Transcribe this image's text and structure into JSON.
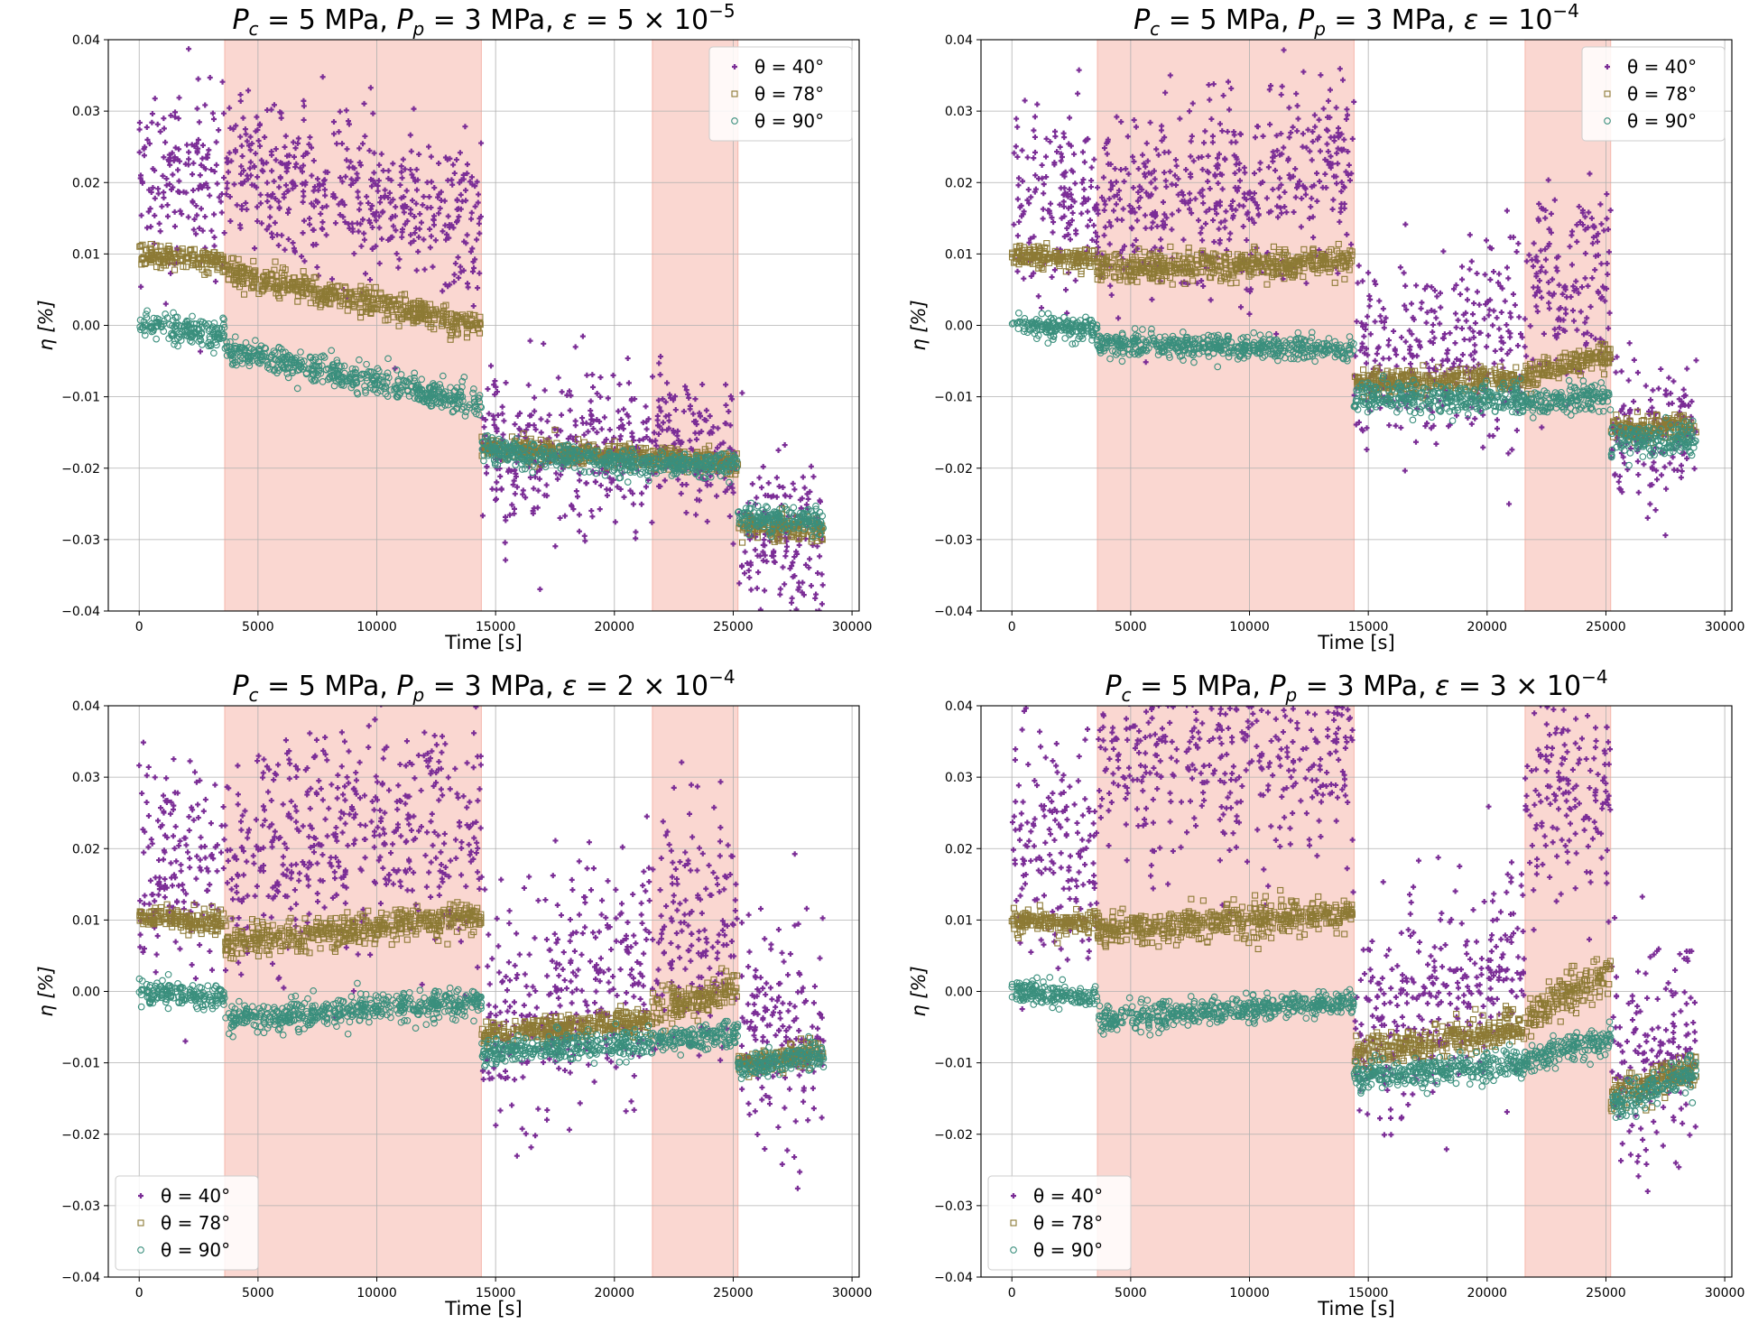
{
  "colors": {
    "theta_40": "#7b2d96",
    "theta_78": "#8d7a35",
    "theta_90": "#3a8f7d",
    "shade": "#f5b7ac"
  },
  "chart_data": [
    {
      "type": "scatter",
      "title": "P_c = 5 MPa, P_p = 3 MPa, ε = 5 × 10^-5",
      "title_parts": {
        "pc": "5 MPa",
        "pp": "3 MPa",
        "eps_mantissa": "5",
        "eps_exp": "−5"
      },
      "xlabel": "Time [s]",
      "ylabel": "η [%]",
      "xlim": [
        -1300,
        30300
      ],
      "ylim": [
        -0.04,
        0.04
      ],
      "xticks": [
        "0",
        "5000",
        "10000",
        "15000",
        "20000",
        "25000",
        "30000"
      ],
      "yticks": [
        "−0.04",
        "−0.03",
        "−0.02",
        "−0.01",
        "0.00",
        "0.01",
        "0.02",
        "0.03",
        "0.04"
      ],
      "grid": true,
      "legend_position": "top-right",
      "shaded_regions": [
        [
          3600,
          14400
        ],
        [
          21600,
          25200
        ]
      ],
      "series": [
        {
          "name": "θ = 40°",
          "marker": "plus",
          "segments": [
            [
              0,
              3600,
              0.022,
              0.02,
              0.006
            ],
            [
              3600,
              14400,
              0.023,
              0.014,
              0.0055
            ],
            [
              14400,
              21600,
              -0.018,
              -0.017,
              0.005
            ],
            [
              21600,
              25200,
              -0.015,
              -0.019,
              0.0045
            ],
            [
              25200,
              28800,
              -0.03,
              -0.031,
              0.006
            ]
          ]
        },
        {
          "name": "θ = 78°",
          "marker": "square",
          "segments": [
            [
              0,
              3600,
              0.01,
              0.009,
              0.0008
            ],
            [
              3600,
              14400,
              0.0075,
              0.0,
              0.0009
            ],
            [
              14400,
              21600,
              -0.017,
              -0.0185,
              0.0008
            ],
            [
              21600,
              25200,
              -0.0185,
              -0.0195,
              0.0008
            ],
            [
              25200,
              28800,
              -0.028,
              -0.0285,
              0.0009
            ]
          ]
        },
        {
          "name": "θ = 90°",
          "marker": "circle",
          "segments": [
            [
              0,
              3600,
              0.0003,
              -0.0015,
              0.0009
            ],
            [
              3600,
              14400,
              -0.0035,
              -0.011,
              0.001
            ],
            [
              14400,
              21600,
              -0.0175,
              -0.0195,
              0.0009
            ],
            [
              21600,
              25200,
              -0.0195,
              -0.0195,
              0.0008
            ],
            [
              25200,
              28800,
              -0.027,
              -0.0275,
              0.0009
            ]
          ]
        }
      ]
    },
    {
      "type": "scatter",
      "title": "P_c = 5 MPa, P_p = 3 MPa, ε = 10^-4",
      "title_parts": {
        "pc": "5 MPa",
        "pp": "3 MPa",
        "eps_mantissa": "",
        "eps_exp": "−4"
      },
      "xlabel": "Time [s]",
      "ylabel": "η [%]",
      "xlim": [
        -1300,
        30300
      ],
      "ylim": [
        -0.04,
        0.04
      ],
      "xticks": [
        "0",
        "5000",
        "10000",
        "15000",
        "20000",
        "25000",
        "30000"
      ],
      "yticks": [
        "−0.04",
        "−0.03",
        "−0.02",
        "−0.01",
        "0.00",
        "0.01",
        "0.02",
        "0.03",
        "0.04"
      ],
      "grid": true,
      "legend_position": "top-right",
      "shaded_regions": [
        [
          3600,
          14400
        ],
        [
          21600,
          25200
        ]
      ],
      "series": [
        {
          "name": "θ = 40°",
          "marker": "plus",
          "segments": [
            [
              0,
              3600,
              0.018,
              0.016,
              0.0065
            ],
            [
              3600,
              14400,
              0.016,
              0.022,
              0.0065
            ],
            [
              14400,
              21600,
              -0.006,
              -0.002,
              0.007
            ],
            [
              21600,
              25200,
              0.004,
              0.008,
              0.0065
            ],
            [
              25200,
              28800,
              -0.016,
              -0.015,
              0.0045
            ]
          ]
        },
        {
          "name": "θ = 78°",
          "marker": "square",
          "segments": [
            [
              0,
              3600,
              0.01,
              0.009,
              0.0007
            ],
            [
              3600,
              14400,
              0.008,
              0.009,
              0.001
            ],
            [
              14400,
              21600,
              -0.008,
              -0.0075,
              0.0008
            ],
            [
              21600,
              25200,
              -0.007,
              -0.004,
              0.0009
            ],
            [
              25200,
              28800,
              -0.0145,
              -0.014,
              0.0008
            ]
          ]
        },
        {
          "name": "θ = 90°",
          "marker": "circle",
          "segments": [
            [
              0,
              3600,
              0.0,
              -0.0005,
              0.0008
            ],
            [
              3600,
              14400,
              -0.0025,
              -0.0035,
              0.0008
            ],
            [
              14400,
              21600,
              -0.01,
              -0.0105,
              0.0011
            ],
            [
              21600,
              25200,
              -0.011,
              -0.01,
              0.001
            ],
            [
              25200,
              28800,
              -0.016,
              -0.016,
              0.0011
            ]
          ]
        }
      ]
    },
    {
      "type": "scatter",
      "title": "P_c = 5 MPa, P_p = 3 MPa, ε = 2 × 10^-4",
      "title_parts": {
        "pc": "5 MPa",
        "pp": "3 MPa",
        "eps_mantissa": "2",
        "eps_exp": "−4"
      },
      "xlabel": "Time [s]",
      "ylabel": "η [%]",
      "xlim": [
        -1300,
        30300
      ],
      "ylim": [
        -0.04,
        0.04
      ],
      "xticks": [
        "0",
        "5000",
        "10000",
        "15000",
        "20000",
        "25000",
        "30000"
      ],
      "yticks": [
        "−0.04",
        "−0.03",
        "−0.02",
        "−0.01",
        "0.00",
        "0.01",
        "0.02",
        "0.03",
        "0.04"
      ],
      "grid": true,
      "legend_position": "bottom-left",
      "shaded_regions": [
        [
          3600,
          14400
        ],
        [
          21600,
          25200
        ]
      ],
      "series": [
        {
          "name": "θ = 40°",
          "marker": "plus",
          "segments": [
            [
              0,
              3600,
              0.019,
              0.017,
              0.0075
            ],
            [
              3600,
              14400,
              0.02,
              0.024,
              0.0085
            ],
            [
              14400,
              21600,
              -0.005,
              0.004,
              0.0075
            ],
            [
              21600,
              25200,
              0.008,
              0.008,
              0.0085
            ],
            [
              25200,
              28800,
              -0.005,
              -0.005,
              0.0075
            ]
          ]
        },
        {
          "name": "θ = 78°",
          "marker": "square",
          "segments": [
            [
              0,
              3600,
              0.0105,
              0.0095,
              0.0008
            ],
            [
              3600,
              14400,
              0.007,
              0.0105,
              0.0011
            ],
            [
              14400,
              21600,
              -0.006,
              -0.004,
              0.0009
            ],
            [
              21600,
              25200,
              -0.003,
              0.0005,
              0.0012
            ],
            [
              25200,
              28800,
              -0.01,
              -0.0085,
              0.0009
            ]
          ]
        },
        {
          "name": "θ = 90°",
          "marker": "circle",
          "segments": [
            [
              0,
              3600,
              0.0,
              -0.001,
              0.0009
            ],
            [
              3600,
              14400,
              -0.004,
              -0.0015,
              0.001
            ],
            [
              14400,
              21600,
              -0.0085,
              -0.007,
              0.0009
            ],
            [
              21600,
              25200,
              -0.007,
              -0.006,
              0.0009
            ],
            [
              25200,
              28800,
              -0.0105,
              -0.009,
              0.0009
            ]
          ]
        }
      ]
    },
    {
      "type": "scatter",
      "title": "P_c = 5 MPa, P_p = 3 MPa, ε = 3 × 10^-4",
      "title_parts": {
        "pc": "5 MPa",
        "pp": "3 MPa",
        "eps_mantissa": "3",
        "eps_exp": "−4"
      },
      "xlabel": "Time [s]",
      "ylabel": "η [%]",
      "xlim": [
        -1300,
        30300
      ],
      "ylim": [
        -0.04,
        0.04
      ],
      "xticks": [
        "0",
        "5000",
        "10000",
        "15000",
        "20000",
        "25000",
        "30000"
      ],
      "yticks": [
        "−0.04",
        "−0.03",
        "−0.02",
        "−0.01",
        "0.00",
        "0.01",
        "0.02",
        "0.03",
        "0.04"
      ],
      "grid": true,
      "legend_position": "bottom-left",
      "shaded_regions": [
        [
          3600,
          14400
        ],
        [
          21600,
          25200
        ]
      ],
      "series": [
        {
          "name": "θ = 40°",
          "marker": "plus",
          "segments": [
            [
              0,
              3600,
              0.02,
              0.02,
              0.0085
            ],
            [
              3600,
              14400,
              0.034,
              0.035,
              0.008
            ],
            [
              14400,
              21600,
              -0.006,
              0.004,
              0.007
            ],
            [
              21600,
              25200,
              0.028,
              0.025,
              0.008
            ],
            [
              25200,
              28800,
              -0.008,
              -0.006,
              0.007
            ]
          ]
        },
        {
          "name": "θ = 78°",
          "marker": "square",
          "segments": [
            [
              0,
              3600,
              0.01,
              0.0095,
              0.0008
            ],
            [
              3600,
              14400,
              0.0085,
              0.011,
              0.0012
            ],
            [
              14400,
              21600,
              -0.009,
              -0.005,
              0.0012
            ],
            [
              21600,
              25200,
              -0.004,
              0.003,
              0.0014
            ],
            [
              25200,
              28800,
              -0.015,
              -0.0105,
              0.0012
            ]
          ]
        },
        {
          "name": "θ = 90°",
          "marker": "circle",
          "segments": [
            [
              0,
              3600,
              0.0,
              -0.001,
              0.0008
            ],
            [
              3600,
              14400,
              -0.004,
              -0.0015,
              0.0009
            ],
            [
              14400,
              21600,
              -0.012,
              -0.01,
              0.0011
            ],
            [
              21600,
              25200,
              -0.01,
              -0.0065,
              0.0011
            ],
            [
              25200,
              28800,
              -0.016,
              -0.011,
              0.0012
            ]
          ]
        }
      ]
    }
  ]
}
